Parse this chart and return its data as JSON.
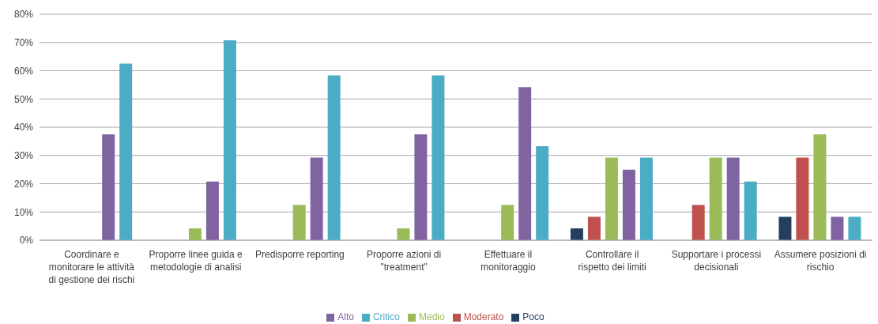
{
  "chart_data": {
    "type": "bar",
    "categories": [
      "Coordinare e monitorare le attività di gestione dei rischi",
      "Proporre linee guida e metodologie di analisi",
      "Predisporre reporting",
      "Proporre azioni di \"treatment\"",
      "Effettuare il monitoraggio",
      "Controllare il rispetto dei limiti",
      "Supportare i processi decisionali",
      "Assumere posizioni di rischio"
    ],
    "series": [
      {
        "name": "Poco",
        "color": "#243f60",
        "values": [
          0,
          0,
          0,
          0,
          0,
          4.2,
          0,
          8.3
        ]
      },
      {
        "name": "Moderato",
        "color": "#c0504d",
        "values": [
          0,
          0,
          0,
          0,
          0,
          8.3,
          12.5,
          29.2
        ]
      },
      {
        "name": "Medio",
        "color": "#9bbb59",
        "values": [
          0,
          4.2,
          12.5,
          4.2,
          12.5,
          29.2,
          29.2,
          37.5
        ]
      },
      {
        "name": "Alto",
        "color": "#8064a2",
        "values": [
          37.5,
          20.8,
          29.2,
          37.5,
          54.2,
          25,
          29.2,
          8.3
        ]
      },
      {
        "name": "Critico",
        "color": "#4bacc6",
        "values": [
          62.5,
          70.8,
          58.3,
          58.3,
          33.3,
          29.2,
          20.8,
          8.3
        ]
      }
    ],
    "ylim": [
      0,
      80
    ],
    "yticks": [
      {
        "value": 0,
        "label": "0%"
      },
      {
        "value": 10,
        "label": "10%"
      },
      {
        "value": 20,
        "label": "20%"
      },
      {
        "value": 30,
        "label": "30%"
      },
      {
        "value": 40,
        "label": "40%"
      },
      {
        "value": 50,
        "label": "50%"
      },
      {
        "value": 60,
        "label": "60%"
      },
      {
        "value": 70,
        "label": "70%"
      },
      {
        "value": 80,
        "label": "80%"
      }
    ],
    "grid": "y",
    "legend": "bottom"
  }
}
